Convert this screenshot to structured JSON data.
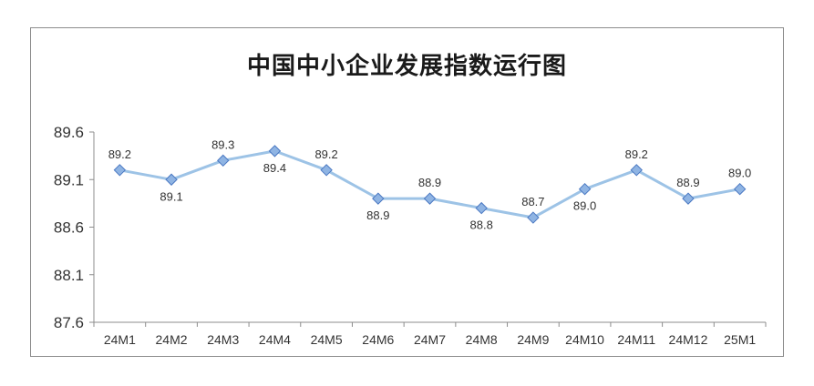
{
  "chart_data": {
    "type": "line",
    "title": "中国中小企业发展指数运行图",
    "categories": [
      "24M1",
      "24M2",
      "24M3",
      "24M4",
      "24M5",
      "24M6",
      "24M7",
      "24M8",
      "24M9",
      "24M10",
      "24M11",
      "24M12",
      "25M1"
    ],
    "values": [
      89.2,
      89.1,
      89.3,
      89.4,
      89.2,
      88.9,
      88.9,
      88.8,
      88.7,
      89.0,
      89.2,
      88.9,
      89.0
    ],
    "value_labels": [
      "89.2",
      "89.1",
      "89.3",
      "89.4",
      "89.2",
      "88.9",
      "88.9",
      "88.8",
      "88.7",
      "89.0",
      "89.2",
      "88.9",
      "89.0"
    ],
    "label_positions": [
      "above",
      "below",
      "above",
      "below",
      "above",
      "below",
      "above",
      "below",
      "above",
      "below",
      "above",
      "above",
      "above"
    ],
    "y_ticks": [
      "89.6",
      "89.1",
      "88.6",
      "88.1",
      "87.6"
    ],
    "ylim": [
      87.6,
      89.6
    ],
    "grid": false,
    "legend": "none",
    "colors": {
      "line": "#9dc3e6",
      "marker_fill": "#8fb4e3",
      "marker_stroke": "#4a78c2"
    }
  }
}
